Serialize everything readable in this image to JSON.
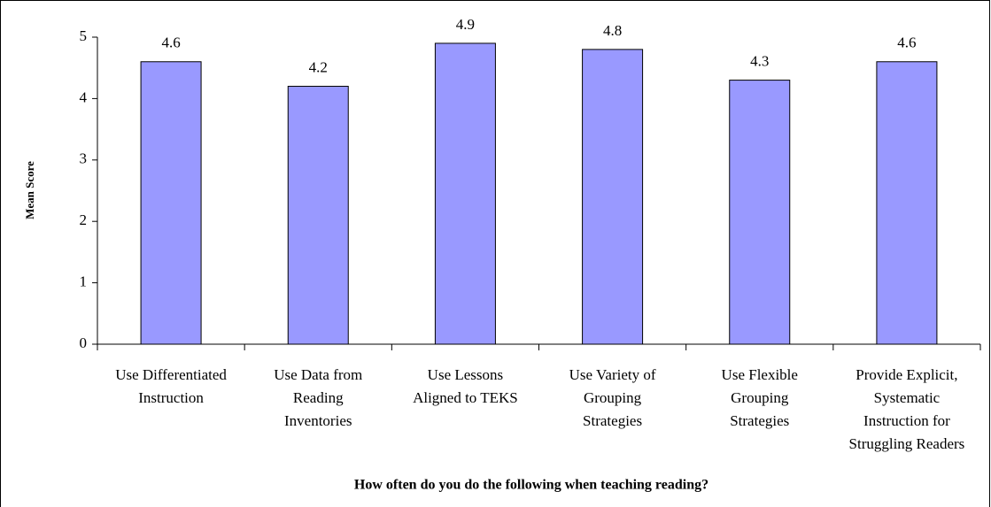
{
  "chart_data": {
    "type": "bar",
    "x_label": "How often do you do the following when teaching reading?",
    "y_label": "Mean Score",
    "categories": [
      [
        "Use Differentiated",
        "Instruction"
      ],
      [
        "Use Data from",
        "Reading",
        "Inventories"
      ],
      [
        "Use Lessons",
        "Aligned to TEKS"
      ],
      [
        "Use Variety of",
        "Grouping",
        "Strategies"
      ],
      [
        "Use Flexible",
        "Grouping",
        "Strategies"
      ],
      [
        "Provide Explicit,",
        "Systematic",
        "Instruction for",
        "Struggling Readers"
      ]
    ],
    "values": [
      4.6,
      4.2,
      4.9,
      4.8,
      4.3,
      4.6
    ],
    "color": "#9999ff",
    "ylim": [
      0,
      5
    ],
    "yticks": [
      0,
      1,
      2,
      3,
      4,
      5
    ],
    "grid": false
  }
}
